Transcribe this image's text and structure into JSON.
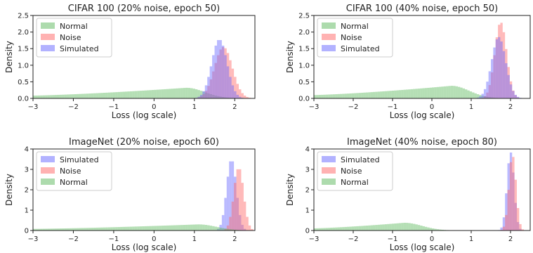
{
  "chart_data": [
    {
      "type": "histogram",
      "title": "CIFAR 100 (20% noise, epoch 50)",
      "xlabel": "Loss (log scale)",
      "ylabel": "Density",
      "xlim": [
        -3,
        2.5
      ],
      "ylim": [
        0,
        2.5
      ],
      "xticks": [
        -3,
        -2,
        -1,
        0,
        1,
        2
      ],
      "xtick_labels": [
        "−3",
        "−2",
        "−1",
        "0",
        "1",
        "2"
      ],
      "yticks": [
        0,
        0.5,
        1.0,
        1.5,
        2.0,
        2.5
      ],
      "ytick_labels": [
        "0.0",
        "0.5",
        "1.0",
        "1.5",
        "2.0",
        "2.5"
      ],
      "legend_position": "top-left",
      "series": [
        {
          "name": "Normal",
          "color": "#5cb85c",
          "dist": "wide",
          "peak_x": 0.8,
          "peak_y": 0.32
        },
        {
          "name": "Noise",
          "color": "#ff6666",
          "dist": "peak",
          "mu": 1.72,
          "sigma": 0.22,
          "peak_y": 1.55
        },
        {
          "name": "Simulated",
          "color": "#6666ff",
          "dist": "peak",
          "mu": 1.62,
          "sigma": 0.19,
          "peak_y": 1.78
        }
      ]
    },
    {
      "type": "histogram",
      "title": "CIFAR 100 (40% noise, epoch 50)",
      "xlabel": "Loss (log scale)",
      "ylabel": "Density",
      "xlim": [
        -3,
        2.5
      ],
      "ylim": [
        0,
        2.5
      ],
      "xticks": [
        -3,
        -2,
        -1,
        0,
        1,
        2
      ],
      "xtick_labels": [
        "−3",
        "−2",
        "−1",
        "0",
        "1",
        "2"
      ],
      "yticks": [
        0,
        0.5,
        1.0,
        1.5,
        2.0,
        2.5
      ],
      "ytick_labels": [
        "0.0",
        "0.5",
        "1.0",
        "1.5",
        "2.0",
        "2.5"
      ],
      "legend_position": "top-left",
      "series": [
        {
          "name": "Normal",
          "color": "#5cb85c",
          "dist": "wide",
          "peak_x": 0.5,
          "peak_y": 0.38
        },
        {
          "name": "Noise",
          "color": "#ff6666",
          "dist": "peak",
          "mu": 1.75,
          "sigma": 0.15,
          "peak_y": 2.3
        },
        {
          "name": "Simulated",
          "color": "#6666ff",
          "dist": "peak",
          "mu": 1.7,
          "sigma": 0.18,
          "peak_y": 1.85
        }
      ]
    },
    {
      "type": "histogram",
      "title": "ImageNet (20% noise, epoch 60)",
      "xlabel": "Loss (log scale)",
      "ylabel": "Density",
      "xlim": [
        -3,
        2.5
      ],
      "ylim": [
        0,
        4
      ],
      "xticks": [
        -3,
        -2,
        -1,
        0,
        1,
        2
      ],
      "xtick_labels": [
        "−3",
        "−2",
        "−1",
        "0",
        "1",
        "2"
      ],
      "yticks": [
        0,
        1,
        2,
        3,
        4
      ],
      "ytick_labels": [
        "0",
        "1",
        "2",
        "3",
        "4"
      ],
      "legend_position": "top-left",
      "series": [
        {
          "name": "Simulated",
          "color": "#6666ff",
          "dist": "peak",
          "mu": 1.92,
          "sigma": 0.12,
          "peak_y": 3.5
        },
        {
          "name": "Noise",
          "color": "#ff6666",
          "dist": "peak",
          "mu": 2.1,
          "sigma": 0.12,
          "peak_y": 3.1
        },
        {
          "name": "Normal",
          "color": "#5cb85c",
          "dist": "wide",
          "peak_x": 1.1,
          "peak_y": 0.3
        }
      ]
    },
    {
      "type": "histogram",
      "title": "ImageNet (40% noise, epoch 80)",
      "xlabel": "Loss (log scale)",
      "ylabel": "Density",
      "xlim": [
        -3,
        2.5
      ],
      "ylim": [
        0,
        4
      ],
      "xticks": [
        -3,
        -2,
        -1,
        0,
        1,
        2
      ],
      "xtick_labels": [
        "−3",
        "−2",
        "−1",
        "0",
        "1",
        "2"
      ],
      "yticks": [
        0,
        1,
        2,
        3,
        4
      ],
      "ytick_labels": [
        "0",
        "1",
        "2",
        "3",
        "4"
      ],
      "legend_position": "top-left",
      "series": [
        {
          "name": "Simulated",
          "color": "#6666ff",
          "dist": "peak",
          "mu": 2.0,
          "sigma": 0.09,
          "peak_y": 3.85
        },
        {
          "name": "Noise",
          "color": "#ff6666",
          "dist": "peak",
          "mu": 2.05,
          "sigma": 0.09,
          "peak_y": 3.7
        },
        {
          "name": "Normal",
          "color": "#5cb85c",
          "dist": "wide",
          "peak_x": -0.7,
          "peak_y": 0.38
        }
      ]
    }
  ]
}
